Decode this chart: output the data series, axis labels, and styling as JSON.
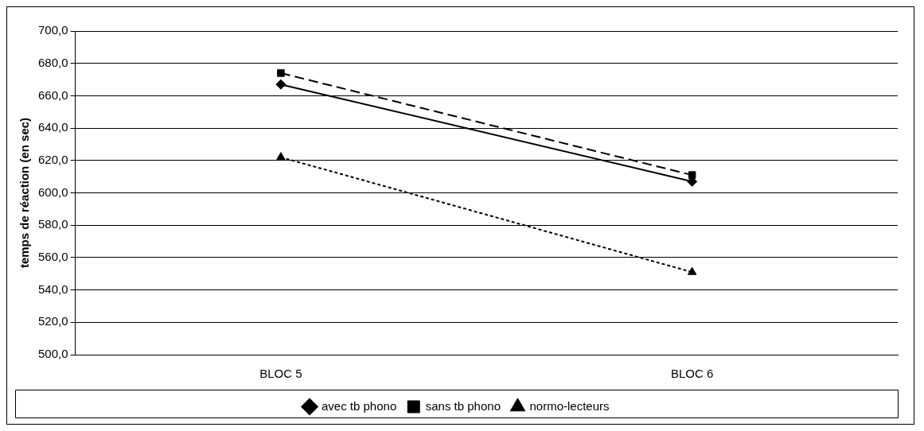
{
  "chart_data": {
    "type": "line",
    "ylabel": "temps de réaction (en sec)",
    "categories": [
      "BLOC 5",
      "BLOC 6"
    ],
    "series": [
      {
        "name": "avec tb phono",
        "color": "#000000",
        "values": [
          667,
          607
        ],
        "marker": "diamond",
        "line_style": "solid"
      },
      {
        "name": "sans tb phono",
        "color": "#000000",
        "values": [
          674,
          611
        ],
        "marker": "square",
        "line_style": "dashed"
      },
      {
        "name": "normo-lecteurs",
        "color": "#000000",
        "values": [
          622,
          551
        ],
        "marker": "triangle",
        "line_style": "dotted"
      }
    ],
    "ylim": [
      500,
      700
    ],
    "yticks": [
      {
        "value": 500,
        "label": "500,0"
      },
      {
        "value": 520,
        "label": "520,0"
      },
      {
        "value": 540,
        "label": "540,0"
      },
      {
        "value": 560,
        "label": "560,0"
      },
      {
        "value": 580,
        "label": "580,0"
      },
      {
        "value": 600,
        "label": "600,0"
      },
      {
        "value": 620,
        "label": "620,0"
      },
      {
        "value": 640,
        "label": "640,0"
      },
      {
        "value": 660,
        "label": "660,0"
      },
      {
        "value": 680,
        "label": "680,0"
      },
      {
        "value": 700,
        "label": "700,0"
      }
    ],
    "grid": "y",
    "legend": "bottom"
  }
}
